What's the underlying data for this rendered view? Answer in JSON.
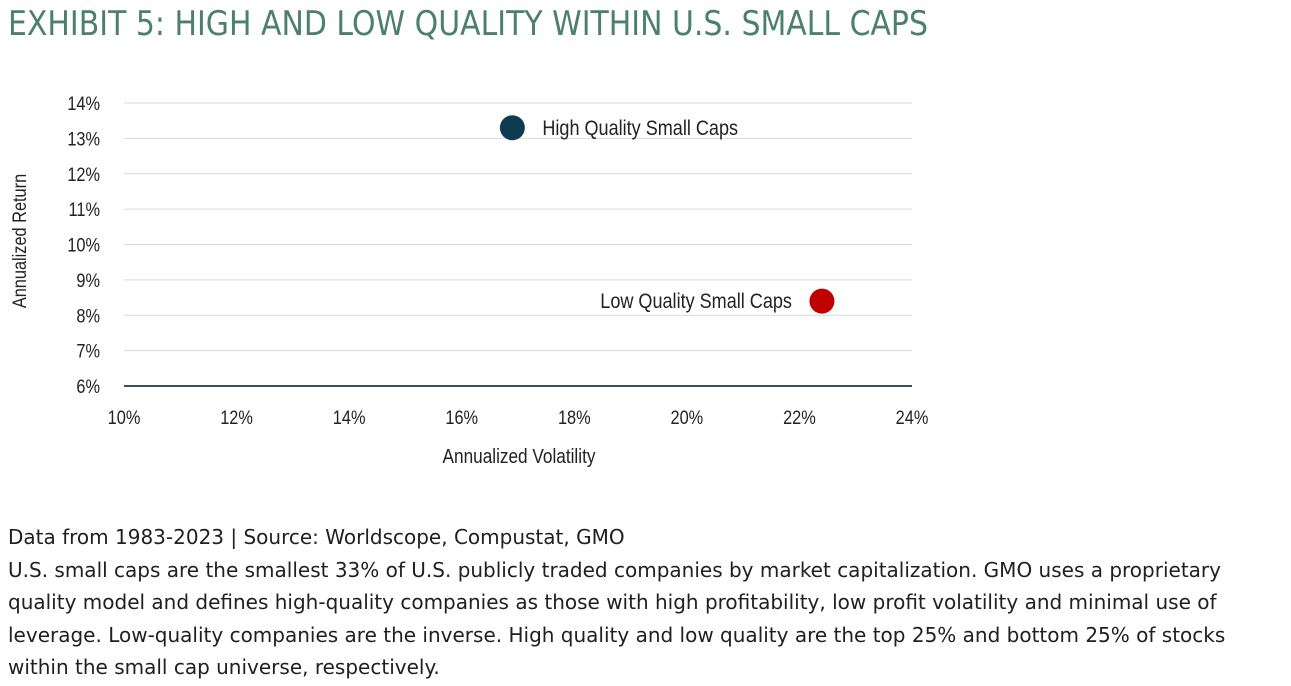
{
  "title": "EXHIBIT 5: HIGH AND LOW QUALITY WITHIN U.S. SMALL CAPS",
  "chart_data": {
    "type": "scatter",
    "xlabel": "Annualized Volatility",
    "ylabel": "Annualized Return",
    "xlim": [
      10,
      24
    ],
    "ylim": [
      6,
      14
    ],
    "x_ticks": [
      "10%",
      "12%",
      "14%",
      "16%",
      "18%",
      "20%",
      "22%",
      "24%"
    ],
    "y_ticks": [
      "14%",
      "13%",
      "12%",
      "11%",
      "10%",
      "9%",
      "8%",
      "7%",
      "6%"
    ],
    "x_tick_values": [
      10,
      12,
      14,
      16,
      18,
      20,
      22,
      24
    ],
    "y_tick_values": [
      14,
      13,
      12,
      11,
      10,
      9,
      8,
      7,
      6
    ],
    "grid": true,
    "points": [
      {
        "name": "High Quality Small Caps",
        "x": 16.9,
        "y": 13.3,
        "color": "#0e3a52",
        "label_side": "right"
      },
      {
        "name": "Low Quality Small Caps",
        "x": 22.4,
        "y": 8.4,
        "color": "#c00000",
        "label_side": "left"
      }
    ],
    "colors": {
      "grid": "#d9d9d9",
      "baseline": "#3c4f5e",
      "label_high": "#1a3a50",
      "label_low": "#c00000",
      "ylabel": "#2f4f60",
      "xlabel": "#2b4352"
    }
  },
  "footnotes": {
    "source": "Data from 1983-2023 | Source: Worldscope, Compustat, GMO",
    "description": "U.S. small caps are the smallest 33% of U.S. publicly traded companies by market capitalization. GMO uses a proprietary quality model and defines high-quality companies as those with high profitability, low profit volatility and minimal use of leverage. Low-quality companies are the inverse. High quality and low quality are the top 25% and bottom 25% of stocks within the small cap universe, respectively."
  }
}
